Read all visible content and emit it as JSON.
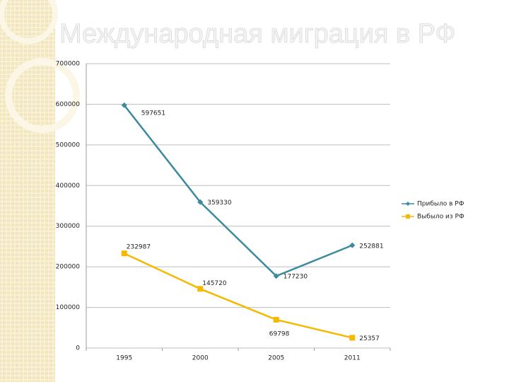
{
  "chart_data": {
    "type": "line",
    "title": "Международная миграция в РФ",
    "categories": [
      "1995",
      "2000",
      "2005",
      "2011"
    ],
    "series": [
      {
        "name": "Прибыло в РФ",
        "color": "#3b8a9e",
        "values": [
          597651,
          359330,
          177230,
          252881
        ]
      },
      {
        "name": "Выбыло из РФ",
        "color": "#f5b900",
        "values": [
          232987,
          145720,
          69798,
          25357
        ]
      }
    ],
    "ylim": [
      0,
      700000
    ],
    "yticks": [
      0,
      100000,
      200000,
      300000,
      400000,
      500000,
      600000,
      700000
    ],
    "grid": true,
    "legend": "right"
  }
}
